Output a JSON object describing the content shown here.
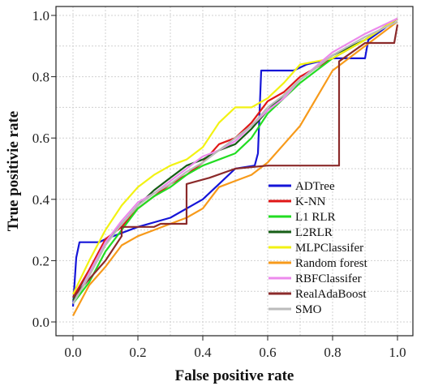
{
  "chart_data": {
    "type": "line",
    "xlabel": "False positive rate",
    "ylabel": "True positivie rate",
    "xlim": [
      0,
      1
    ],
    "ylim": [
      0,
      1
    ],
    "grid": true,
    "legend_position": "lower-right",
    "x_ticks": [
      "0.0",
      "0.2",
      "0.4",
      "0.6",
      "0.8",
      "1.0"
    ],
    "y_ticks": [
      "0.0",
      "0.2",
      "0.4",
      "0.6",
      "0.8",
      "1.0"
    ],
    "series": [
      {
        "name": "ADTree",
        "color": "#1515d8",
        "points": [
          [
            0,
            0.05
          ],
          [
            0.01,
            0.21
          ],
          [
            0.02,
            0.26
          ],
          [
            0.08,
            0.26
          ],
          [
            0.1,
            0.27
          ],
          [
            0.2,
            0.31
          ],
          [
            0.3,
            0.34
          ],
          [
            0.4,
            0.4
          ],
          [
            0.45,
            0.45
          ],
          [
            0.5,
            0.5
          ],
          [
            0.56,
            0.51
          ],
          [
            0.57,
            0.55
          ],
          [
            0.58,
            0.82
          ],
          [
            0.68,
            0.82
          ],
          [
            0.72,
            0.84
          ],
          [
            0.8,
            0.86
          ],
          [
            0.9,
            0.86
          ],
          [
            0.91,
            0.92
          ],
          [
            0.95,
            0.95
          ],
          [
            1.0,
            0.99
          ]
        ]
      },
      {
        "name": "K-NN",
        "color": "#e01616",
        "points": [
          [
            0,
            0.08
          ],
          [
            0.05,
            0.17
          ],
          [
            0.1,
            0.27
          ],
          [
            0.15,
            0.31
          ],
          [
            0.2,
            0.37
          ],
          [
            0.25,
            0.41
          ],
          [
            0.3,
            0.45
          ],
          [
            0.35,
            0.48
          ],
          [
            0.4,
            0.52
          ],
          [
            0.45,
            0.58
          ],
          [
            0.5,
            0.6
          ],
          [
            0.55,
            0.65
          ],
          [
            0.6,
            0.72
          ],
          [
            0.65,
            0.75
          ],
          [
            0.7,
            0.8
          ],
          [
            0.8,
            0.86
          ],
          [
            0.9,
            0.92
          ],
          [
            1.0,
            0.99
          ]
        ]
      },
      {
        "name": "L1 RLR",
        "color": "#22dd22",
        "points": [
          [
            0,
            0.06
          ],
          [
            0.05,
            0.13
          ],
          [
            0.1,
            0.23
          ],
          [
            0.15,
            0.3
          ],
          [
            0.2,
            0.37
          ],
          [
            0.25,
            0.41
          ],
          [
            0.3,
            0.44
          ],
          [
            0.35,
            0.48
          ],
          [
            0.4,
            0.51
          ],
          [
            0.45,
            0.53
          ],
          [
            0.5,
            0.55
          ],
          [
            0.55,
            0.6
          ],
          [
            0.6,
            0.68
          ],
          [
            0.65,
            0.73
          ],
          [
            0.7,
            0.78
          ],
          [
            0.8,
            0.86
          ],
          [
            0.9,
            0.92
          ],
          [
            1.0,
            0.99
          ]
        ]
      },
      {
        "name": "L2RLR",
        "color": "#155e15",
        "points": [
          [
            0,
            0.07
          ],
          [
            0.05,
            0.16
          ],
          [
            0.1,
            0.26
          ],
          [
            0.15,
            0.32
          ],
          [
            0.2,
            0.38
          ],
          [
            0.25,
            0.43
          ],
          [
            0.3,
            0.47
          ],
          [
            0.35,
            0.51
          ],
          [
            0.4,
            0.53
          ],
          [
            0.45,
            0.56
          ],
          [
            0.5,
            0.58
          ],
          [
            0.55,
            0.63
          ],
          [
            0.6,
            0.69
          ],
          [
            0.65,
            0.74
          ],
          [
            0.7,
            0.79
          ],
          [
            0.8,
            0.87
          ],
          [
            0.9,
            0.92
          ],
          [
            1.0,
            0.99
          ]
        ]
      },
      {
        "name": "MLPClassifer",
        "color": "#f2f213",
        "points": [
          [
            0,
            0.09
          ],
          [
            0.05,
            0.2
          ],
          [
            0.1,
            0.3
          ],
          [
            0.15,
            0.38
          ],
          [
            0.2,
            0.44
          ],
          [
            0.25,
            0.48
          ],
          [
            0.3,
            0.51
          ],
          [
            0.35,
            0.53
          ],
          [
            0.4,
            0.57
          ],
          [
            0.45,
            0.65
          ],
          [
            0.5,
            0.7
          ],
          [
            0.55,
            0.7
          ],
          [
            0.6,
            0.73
          ],
          [
            0.65,
            0.78
          ],
          [
            0.7,
            0.84
          ],
          [
            0.8,
            0.86
          ],
          [
            0.9,
            0.92
          ],
          [
            1.0,
            0.99
          ]
        ]
      },
      {
        "name": "Random forest",
        "color": "#f79a1a",
        "points": [
          [
            0,
            0.02
          ],
          [
            0.05,
            0.12
          ],
          [
            0.1,
            0.18
          ],
          [
            0.15,
            0.25
          ],
          [
            0.2,
            0.28
          ],
          [
            0.25,
            0.3
          ],
          [
            0.3,
            0.32
          ],
          [
            0.35,
            0.34
          ],
          [
            0.4,
            0.37
          ],
          [
            0.45,
            0.44
          ],
          [
            0.5,
            0.46
          ],
          [
            0.55,
            0.48
          ],
          [
            0.6,
            0.52
          ],
          [
            0.65,
            0.58
          ],
          [
            0.7,
            0.64
          ],
          [
            0.8,
            0.82
          ],
          [
            0.9,
            0.9
          ],
          [
            1.0,
            0.98
          ]
        ]
      },
      {
        "name": "RBFClassifer",
        "color": "#ec8aec",
        "points": [
          [
            0,
            0.06
          ],
          [
            0.05,
            0.16
          ],
          [
            0.1,
            0.26
          ],
          [
            0.15,
            0.33
          ],
          [
            0.2,
            0.39
          ],
          [
            0.25,
            0.42
          ],
          [
            0.3,
            0.46
          ],
          [
            0.35,
            0.5
          ],
          [
            0.4,
            0.54
          ],
          [
            0.45,
            0.56
          ],
          [
            0.5,
            0.59
          ],
          [
            0.55,
            0.64
          ],
          [
            0.6,
            0.69
          ],
          [
            0.65,
            0.73
          ],
          [
            0.7,
            0.79
          ],
          [
            0.8,
            0.88
          ],
          [
            0.9,
            0.94
          ],
          [
            1.0,
            0.99
          ]
        ]
      },
      {
        "name": "RealAdaBoost",
        "color": "#8b2a2a",
        "points": [
          [
            0,
            0.08
          ],
          [
            0.05,
            0.14
          ],
          [
            0.1,
            0.2
          ],
          [
            0.15,
            0.28
          ],
          [
            0.15,
            0.31
          ],
          [
            0.25,
            0.31
          ],
          [
            0.27,
            0.32
          ],
          [
            0.35,
            0.32
          ],
          [
            0.35,
            0.45
          ],
          [
            0.42,
            0.47
          ],
          [
            0.5,
            0.5
          ],
          [
            0.6,
            0.51
          ],
          [
            0.82,
            0.51
          ],
          [
            0.82,
            0.85
          ],
          [
            0.9,
            0.91
          ],
          [
            0.95,
            0.91
          ],
          [
            0.99,
            0.91
          ],
          [
            1.0,
            0.97
          ]
        ]
      },
      {
        "name": "SMO",
        "color": "#bbbbbb",
        "points": [
          [
            0,
            0.06
          ],
          [
            0.05,
            0.15
          ],
          [
            0.1,
            0.25
          ],
          [
            0.15,
            0.32
          ],
          [
            0.2,
            0.38
          ],
          [
            0.25,
            0.42
          ],
          [
            0.3,
            0.45
          ],
          [
            0.35,
            0.49
          ],
          [
            0.4,
            0.52
          ],
          [
            0.45,
            0.56
          ],
          [
            0.5,
            0.6
          ],
          [
            0.55,
            0.64
          ],
          [
            0.6,
            0.7
          ],
          [
            0.65,
            0.74
          ],
          [
            0.7,
            0.79
          ],
          [
            0.8,
            0.87
          ],
          [
            0.9,
            0.93
          ],
          [
            1.0,
            0.98
          ]
        ]
      }
    ]
  }
}
